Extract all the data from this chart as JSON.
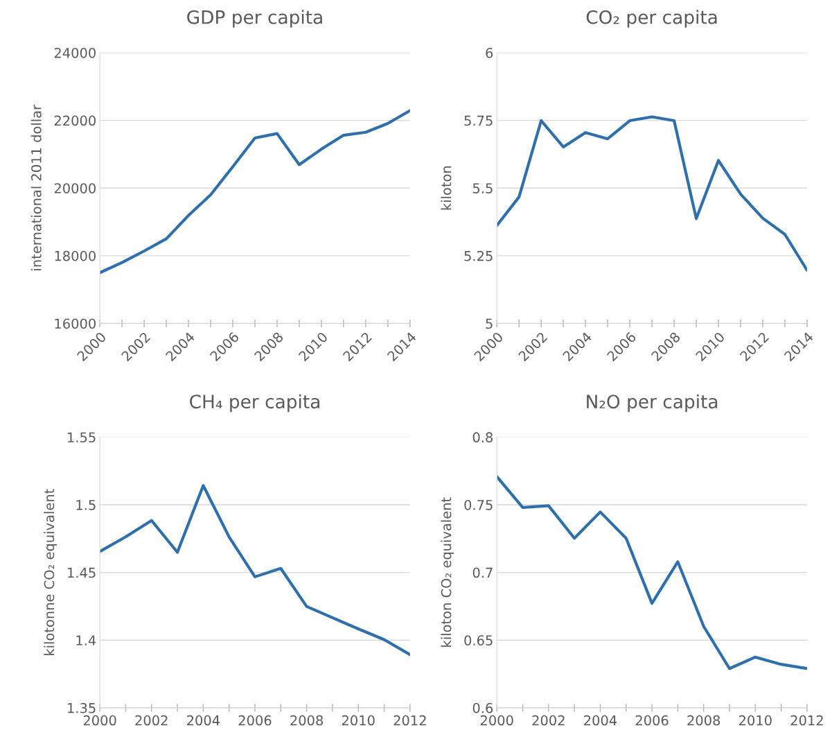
{
  "chart_data": [
    {
      "type": "line",
      "title": "GDP per capita",
      "ylabel": "international 2011 dollar",
      "x": [
        2000,
        2001,
        2002,
        2003,
        2004,
        2005,
        2006,
        2007,
        2008,
        2009,
        2010,
        2011,
        2012,
        2013,
        2014
      ],
      "series": [
        {
          "color": "#2e6fad",
          "values": [
            17500,
            17800,
            18140,
            18500,
            19190,
            19800,
            20630,
            21480,
            21610,
            20690,
            21150,
            21560,
            21650,
            21910,
            22290
          ]
        }
      ],
      "xlim": [
        2000,
        2014
      ],
      "xticks": [
        2000,
        {
          "value": 2001,
          "label": null
        },
        2002,
        {
          "value": 2003,
          "label": null
        },
        2004,
        {
          "value": 2005,
          "label": null
        },
        2006,
        {
          "value": 2007,
          "label": null
        },
        2008,
        {
          "value": 2009,
          "label": null
        },
        2010,
        {
          "value": 2011,
          "label": null
        },
        2012,
        {
          "value": 2013,
          "label": null
        },
        2014
      ],
      "ylim": [
        16000,
        24000
      ],
      "yticks": [
        16000,
        18000,
        20000,
        22000,
        24000
      ],
      "grid": "y",
      "marker": "none",
      "line_style": "solid"
    },
    {
      "type": "line",
      "title": "CO₂ per capita",
      "ylabel": "kiloton",
      "x": [
        2000,
        2001,
        2002,
        2003,
        2004,
        2005,
        2006,
        2007,
        2008,
        2009,
        2010,
        2011,
        2012,
        2013,
        2014
      ],
      "series": [
        {
          "color": "#2e6fad",
          "values": [
            5.362,
            5.467,
            5.749,
            5.652,
            5.705,
            5.682,
            5.749,
            5.763,
            5.749,
            5.387,
            5.602,
            5.478,
            5.389,
            5.329,
            5.197
          ]
        }
      ],
      "xlim": [
        2000,
        2014
      ],
      "xticks": [
        2000,
        {
          "value": 2001,
          "label": null
        },
        2002,
        {
          "value": 2003,
          "label": null
        },
        2004,
        {
          "value": 2005,
          "label": null
        },
        2006,
        {
          "value": 2007,
          "label": null
        },
        2008,
        {
          "value": 2009,
          "label": null
        },
        2010,
        {
          "value": 2011,
          "label": null
        },
        2012,
        {
          "value": 2013,
          "label": null
        },
        2014
      ],
      "ylim": [
        5,
        6
      ],
      "yticks": [
        5,
        5.25,
        5.5,
        5.75,
        6
      ],
      "grid": "y",
      "marker": "none",
      "line_style": "solid"
    },
    {
      "type": "line",
      "title": "CH₄ per capita",
      "ylabel": "kilotonne CO₂ equivalent",
      "x": [
        2000,
        2001,
        2002,
        2003,
        2004,
        2005,
        2006,
        2007,
        2008,
        2009,
        2010,
        2011,
        2012
      ],
      "series": [
        {
          "color": "#2e6fad",
          "values": [
            1.4655,
            1.4763,
            1.4884,
            1.4649,
            1.5142,
            1.4763,
            1.4468,
            1.453,
            1.4249,
            1.4166,
            1.4083,
            1.4004,
            1.3893
          ]
        }
      ],
      "xlim": [
        2000,
        2012
      ],
      "xticks": [
        2000,
        {
          "value": 2001,
          "label": null
        },
        2002,
        {
          "value": 2003,
          "label": null
        },
        2004,
        {
          "value": 2005,
          "label": null
        },
        2006,
        {
          "value": 2007,
          "label": null
        },
        2008,
        {
          "value": 2009,
          "label": null
        },
        2010,
        {
          "value": 2011,
          "label": null
        },
        2012
      ],
      "ylim": [
        1.35,
        1.55
      ],
      "yticks": [
        1.35,
        1.4,
        1.45,
        1.5,
        1.55
      ],
      "grid": "y",
      "marker": "none",
      "line_style": "solid"
    },
    {
      "type": "line",
      "title": "N₂O per capita",
      "ylabel": "kiloton CO₂ equivalent",
      "x": [
        2000,
        2001,
        2002,
        2003,
        2004,
        2005,
        2006,
        2007,
        2008,
        2009,
        2010,
        2011,
        2012
      ],
      "series": [
        {
          "color": "#2e6fad",
          "values": [
            0.7708,
            0.748,
            0.7493,
            0.7253,
            0.7447,
            0.7253,
            0.6772,
            0.7079,
            0.6602,
            0.629,
            0.6375,
            0.6321,
            0.629
          ]
        }
      ],
      "xlim": [
        2000,
        2012
      ],
      "xticks": [
        2000,
        {
          "value": 2001,
          "label": null
        },
        2002,
        {
          "value": 2003,
          "label": null
        },
        2004,
        {
          "value": 2005,
          "label": null
        },
        2006,
        {
          "value": 2007,
          "label": null
        },
        2008,
        {
          "value": 2009,
          "label": null
        },
        2010,
        {
          "value": 2011,
          "label": null
        },
        2012
      ],
      "ylim": [
        0.6,
        0.8
      ],
      "yticks": [
        0.6,
        0.65,
        0.7,
        0.75,
        0.8
      ],
      "grid": "y",
      "marker": "none",
      "line_style": "solid"
    }
  ]
}
